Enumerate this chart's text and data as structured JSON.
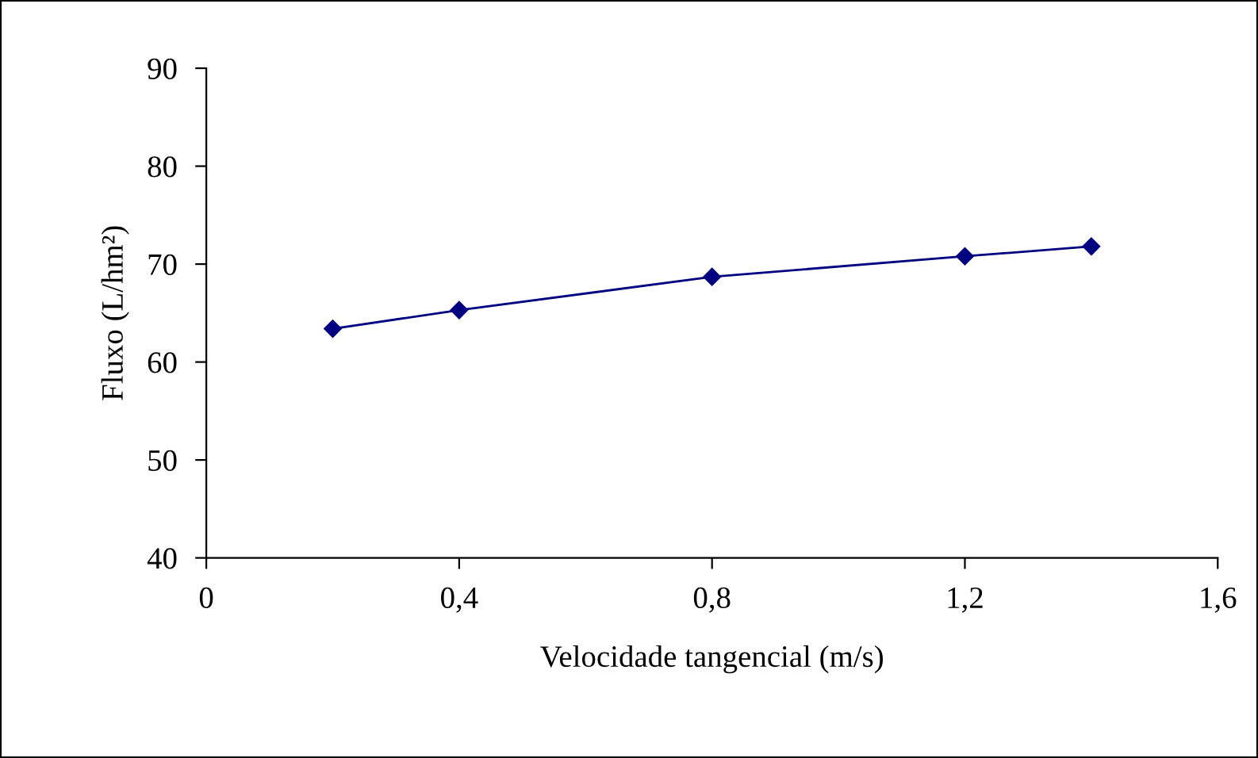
{
  "chart_data": {
    "type": "line",
    "xlabel": "Velocidade tangencial (m/s)",
    "ylabel": "Fluxo (L/hm²)",
    "x": [
      0.2,
      0.4,
      0.8,
      1.2,
      1.4
    ],
    "series": [
      {
        "color": "#000080",
        "values": [
          63.4,
          65.3,
          68.7,
          70.8,
          71.8
        ]
      }
    ],
    "marker": "diamond",
    "line_style": "solid",
    "grid": false,
    "legend": false,
    "xlim": [
      0,
      1.6
    ],
    "xticks": [
      0,
      {
        "value": 0.4,
        "label": "0,4"
      },
      {
        "value": 0.8,
        "label": "0,8"
      },
      {
        "value": 1.2,
        "label": "1,2"
      },
      {
        "value": 1.6,
        "label": "1,6"
      }
    ],
    "ylim": [
      40,
      90
    ],
    "yticks": [
      40,
      50,
      60,
      70,
      80,
      90
    ]
  }
}
